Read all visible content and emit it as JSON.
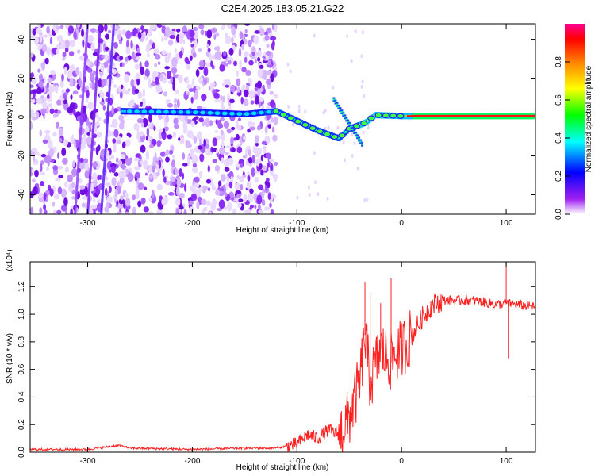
{
  "title": "C2E4.2025.183.05.21.G22",
  "chart_data": [
    {
      "type": "heatmap",
      "xlabel": "Height of straight line (km)",
      "ylabel": "Frequency (Hz)",
      "xlim": [
        -355,
        128
      ],
      "ylim": [
        -50,
        48
      ],
      "xticks": [
        -300,
        -200,
        -100,
        0,
        100
      ],
      "yticks": [
        -40,
        -20,
        0,
        20,
        40
      ],
      "colorbar": {
        "label": "Normalized spectral amplitude",
        "range": [
          0,
          1
        ],
        "ticks": [
          "0.0",
          "0.2",
          "0.4",
          "0.6",
          "0.8"
        ],
        "colors": [
          "#ffffff",
          "#a020f0",
          "#0000ff",
          "#00ffff",
          "#00ff00",
          "#ffff00",
          "#ff8000",
          "#ff0000",
          "#ff0090"
        ]
      },
      "noise_region_x": [
        -355,
        -120
      ],
      "signal_track": [
        {
          "x": -268,
          "freq": 3
        },
        {
          "x": -200,
          "freq": 2.5
        },
        {
          "x": -150,
          "freq": 1.5
        },
        {
          "x": -120,
          "freq": 3
        },
        {
          "x": -100,
          "freq": -2
        },
        {
          "x": -80,
          "freq": -7
        },
        {
          "x": -60,
          "freq": -11
        },
        {
          "x": -50,
          "freq": -6
        },
        {
          "x": -35,
          "freq": -3
        },
        {
          "x": -25,
          "freq": 1
        },
        {
          "x": 0,
          "freq": 0.5
        },
        {
          "x": 128,
          "freq": 0.5
        }
      ]
    },
    {
      "type": "line",
      "xlabel": "Height of straight line (km)",
      "ylabel": "SNR (10 * v/v)",
      "yscale_label": "(x10⁴)",
      "xlim": [
        -355,
        128
      ],
      "ylim": [
        0,
        1.38
      ],
      "xticks": [
        -300,
        -200,
        -100,
        0,
        100
      ],
      "yticks": [
        "0.0",
        "0.2",
        "0.4",
        "0.6",
        "0.8",
        "1.0",
        "1.2"
      ],
      "series": [
        {
          "color": "#ff2020",
          "points": [
            [
              -355,
              0.02
            ],
            [
              -300,
              0.02
            ],
            [
              -270,
              0.05
            ],
            [
              -260,
              0.03
            ],
            [
              -200,
              0.02
            ],
            [
              -150,
              0.03
            ],
            [
              -120,
              0.03
            ],
            [
              -100,
              0.06
            ],
            [
              -90,
              0.13
            ],
            [
              -80,
              0.1
            ],
            [
              -70,
              0.16
            ],
            [
              -60,
              0.13
            ],
            [
              -50,
              0.25
            ],
            [
              -40,
              0.5
            ],
            [
              -35,
              0.85
            ],
            [
              -30,
              0.5
            ],
            [
              -20,
              0.75
            ],
            [
              -10,
              0.65
            ],
            [
              -5,
              0.72
            ],
            [
              0,
              0.75
            ],
            [
              10,
              0.85
            ],
            [
              20,
              0.98
            ],
            [
              30,
              1.07
            ],
            [
              40,
              1.1
            ],
            [
              50,
              1.1
            ],
            [
              70,
              1.1
            ],
            [
              90,
              1.07
            ],
            [
              100,
              1.08
            ],
            [
              110,
              1.07
            ],
            [
              128,
              1.05
            ]
          ],
          "spikes": [
            {
              "x": -35,
              "y": 1.23
            },
            {
              "x": -30,
              "y": 1.15
            },
            {
              "x": -20,
              "y": 1.08
            },
            {
              "x": -10,
              "y": 1.26
            },
            {
              "x": 100,
              "y": 1.42
            },
            {
              "x": 102,
              "y": 0.68
            }
          ]
        }
      ]
    }
  ]
}
